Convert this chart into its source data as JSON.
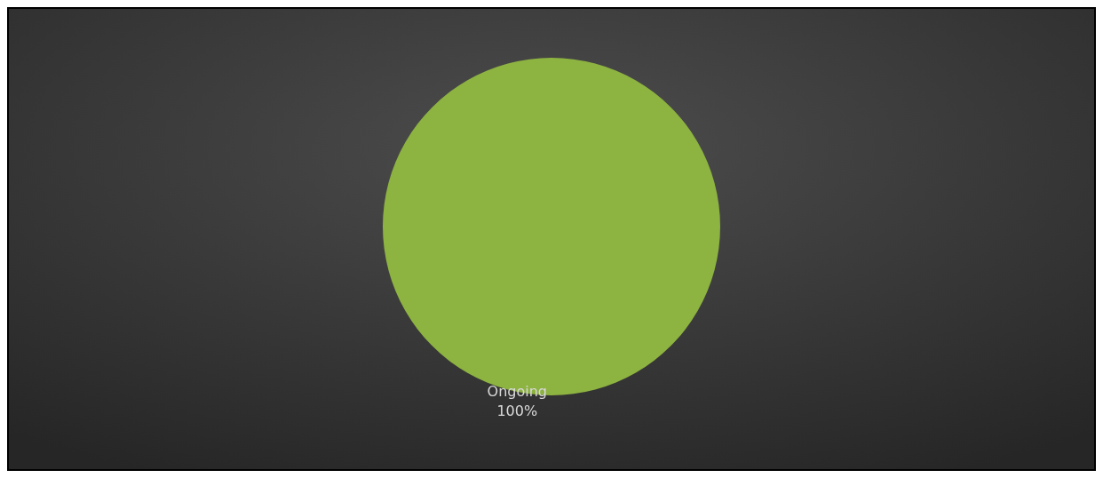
{
  "chart_data": {
    "type": "pie",
    "categories": [
      "Ongoing"
    ],
    "values": [
      100
    ],
    "colors": [
      "#8db341"
    ],
    "value_labels": [
      "100%"
    ],
    "legend": false
  }
}
